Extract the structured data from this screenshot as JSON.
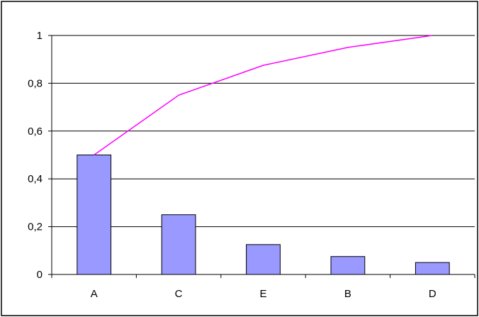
{
  "chart_data": {
    "type": "bar",
    "categories": [
      "A",
      "C",
      "E",
      "B",
      "D"
    ],
    "series": [
      {
        "type": "bar",
        "values": [
          0.5,
          0.25,
          0.125,
          0.075,
          0.05
        ],
        "color": "#9999ff"
      },
      {
        "type": "line",
        "values": [
          0.5,
          0.75,
          0.875,
          0.95,
          1.0
        ],
        "color": "#ff00ff"
      }
    ],
    "ylim": [
      0,
      1
    ],
    "yticks": [
      0,
      0.2,
      0.4,
      0.6,
      0.8,
      1
    ],
    "ytick_labels": [
      "0",
      "0,2",
      "0,4",
      "0,6",
      "0,8",
      "1"
    ],
    "grid": "horizontal",
    "legend": "none",
    "frame_color": "#000000",
    "bar_border_color": "#000000"
  }
}
